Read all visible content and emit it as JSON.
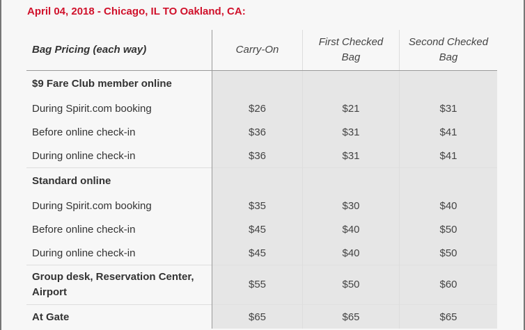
{
  "title": "April 04, 2018 - Chicago, IL TO Oakland, CA:",
  "table": {
    "headers": [
      "Bag Pricing (each way)",
      "Carry-On",
      "First Checked Bag",
      "Second Checked Bag"
    ],
    "sections": [
      {
        "label": "$9 Fare Club member online",
        "rows": [
          {
            "label": "During Spirit.com booking",
            "values": [
              "$26",
              "$21",
              "$31"
            ]
          },
          {
            "label": "Before online check-in",
            "values": [
              "$36",
              "$31",
              "$41"
            ]
          },
          {
            "label": "During online check-in",
            "values": [
              "$36",
              "$31",
              "$41"
            ]
          }
        ]
      },
      {
        "label": "Standard online",
        "rows": [
          {
            "label": "During Spirit.com booking",
            "values": [
              "$35",
              "$30",
              "$40"
            ]
          },
          {
            "label": "Before online check-in",
            "values": [
              "$45",
              "$40",
              "$50"
            ]
          },
          {
            "label": "During online check-in",
            "values": [
              "$45",
              "$40",
              "$50"
            ]
          }
        ]
      },
      {
        "label": "Group desk, Reservation Center, Airport",
        "values": [
          "$55",
          "$50",
          "$60"
        ]
      },
      {
        "label": "At Gate",
        "values": [
          "$65",
          "$65",
          "$65"
        ]
      }
    ]
  },
  "colors": {
    "title": "#d0112b",
    "price_cell_bg": "#e6e6e6",
    "background": "#f7f7f7"
  }
}
